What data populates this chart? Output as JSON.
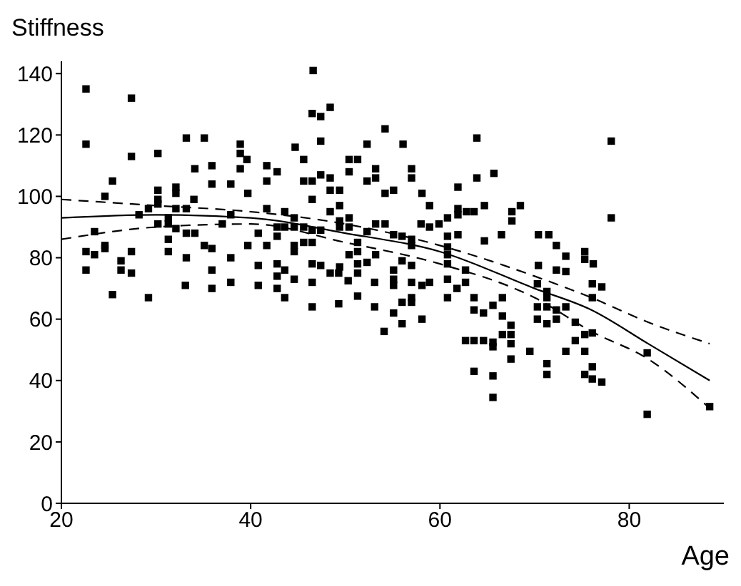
{
  "chart_data": {
    "type": "scatter",
    "xlabel": "Age",
    "ylabel": "Stiffness",
    "xlim": [
      20,
      90
    ],
    "ylim": [
      0,
      144
    ],
    "xticks": [
      20,
      40,
      60,
      80
    ],
    "yticks": [
      0,
      20,
      40,
      60,
      80,
      100,
      120,
      140
    ],
    "grid": false,
    "legend": false,
    "marker": "square",
    "series": [
      {
        "color": "#000000",
        "x": [
          22.6,
          27.4,
          22.6,
          27.4,
          30.2,
          33.2,
          35.1,
          38.9,
          38.9,
          38.9,
          39.6,
          25.4,
          34.1,
          35.9,
          35.9,
          37.9,
          39.7,
          24.6,
          30.2,
          30.2,
          30.2,
          32.1,
          32.1,
          34,
          29.2,
          28.2,
          32.1,
          33.2,
          37.9,
          37,
          30.2,
          31.3,
          31.3,
          32.1,
          31.3,
          31.3,
          33.2,
          34.1,
          35.1,
          35.9,
          37.9,
          33.2,
          39.7,
          23.5,
          22.6,
          23.5,
          24.6,
          24.6,
          27.4,
          26.3,
          22.6,
          26.3,
          27.4,
          25.4,
          29.2,
          33.1,
          35.9,
          35.9,
          37.9,
          46.6,
          46.5,
          47.4,
          48.4,
          47.4,
          54.2,
          44.7,
          52.3,
          56.1,
          63.9,
          41.7,
          42.8,
          45.6,
          50.4,
          51.3,
          50.4,
          53.2,
          53.2,
          52.3,
          57,
          57,
          63.9,
          41.7,
          45.6,
          46.5,
          47.4,
          48.4,
          48.4,
          49.4,
          54.2,
          55.1,
          58.1,
          61.9,
          46.5,
          49.4,
          58.9,
          48.4,
          41.7,
          43.6,
          61.9,
          61.9,
          62.8,
          63.6,
          60.8,
          40.8,
          42.8,
          42.8,
          43.6,
          44.6,
          45.6,
          46.5,
          47.4,
          44.6,
          49.4,
          49.4,
          50.4,
          50.4,
          53.2,
          54.2,
          52.3,
          55.1,
          56,
          57,
          58,
          58.9,
          59.9,
          60.8,
          61.9,
          41.7,
          44.6,
          44.6,
          45.6,
          46.5,
          51.3,
          51.3,
          50.4,
          53.2,
          57,
          60.8,
          60.8,
          40.8,
          42.8,
          43.6,
          46.5,
          47.4,
          49.4,
          51.3,
          52.3,
          55.1,
          56,
          57,
          60.8,
          42.8,
          40.8,
          42.8,
          44.6,
          43.6,
          46.5,
          46.5,
          48.4,
          49.3,
          49.3,
          50.3,
          51.3,
          51.3,
          53.1,
          53.1,
          54.1,
          55.1,
          55.1,
          55.1,
          56,
          56,
          57,
          57,
          57,
          58.1,
          58.1,
          58.9,
          60.8,
          60.8,
          61.8,
          62.7,
          62.7,
          62.7,
          63.6,
          63.6,
          63.6,
          63.6,
          78.1,
          65.7,
          64.7,
          68.5,
          67.6,
          67.6,
          78.1,
          64.7,
          66.5,
          70.4,
          71.5,
          72.3,
          73.3,
          75.3,
          75.3,
          76.2,
          70.4,
          72.3,
          73.3,
          70.3,
          71.3,
          71.3,
          76.1,
          77.1,
          76.1,
          64.6,
          65.6,
          66.6,
          66.6,
          67.5,
          67.5,
          67.5,
          67.5,
          66.6,
          65.6,
          65.6,
          64.6,
          70.3,
          71.3,
          72.3,
          70.3,
          71.3,
          72.3,
          73.3,
          74.3,
          74.3,
          73.3,
          75.3,
          76.1,
          75.3,
          69.5,
          71.3,
          71.3,
          75.3,
          76.1,
          76.1,
          77.1,
          65.6,
          65.6,
          81.9,
          81.9,
          88.5
        ],
        "values": [
          135,
          132,
          117,
          113,
          114,
          119,
          119,
          117,
          114,
          109,
          112,
          105,
          109,
          110,
          104,
          104,
          101,
          100,
          102,
          99,
          97.5,
          103,
          101,
          99,
          96,
          94,
          96,
          96,
          94,
          91,
          91,
          93,
          91,
          89.5,
          86,
          82,
          88,
          88,
          84,
          83,
          80,
          80,
          84,
          88.5,
          82,
          81,
          84,
          83,
          82,
          79,
          76,
          76,
          75,
          68,
          67,
          71,
          76,
          70,
          72,
          141,
          127,
          126,
          129,
          118,
          122,
          116,
          117,
          117,
          119,
          110,
          108,
          112,
          112,
          112,
          108,
          109,
          106,
          105,
          109,
          106,
          106,
          105,
          105,
          105,
          107,
          106,
          102,
          102,
          101,
          102,
          101,
          103,
          99,
          97,
          97,
          95,
          96,
          95,
          96,
          94,
          95,
          95,
          93,
          88,
          90,
          87,
          90,
          90,
          90,
          89,
          89,
          93,
          92,
          90,
          93,
          90,
          91,
          91,
          88.5,
          87.5,
          87,
          86,
          91,
          90,
          91,
          87,
          87.5,
          84,
          84,
          82,
          85,
          85,
          85,
          82,
          81,
          81,
          84,
          83.5,
          81,
          77.5,
          78,
          76,
          78,
          77.5,
          77,
          78,
          78.5,
          76,
          79,
          77.5,
          78,
          74,
          71,
          70,
          73,
          67,
          72,
          64,
          75,
          75,
          65,
          72.5,
          75,
          67.5,
          72,
          64,
          56,
          73,
          71,
          62,
          65.5,
          58.5,
          72,
          67,
          65.5,
          71,
          60,
          72,
          73,
          67,
          70,
          76,
          72,
          53,
          67,
          63,
          53,
          43,
          118,
          107.5,
          97,
          97,
          95,
          92,
          93,
          85.5,
          87.5,
          87.5,
          87.5,
          84,
          80.5,
          82,
          79.5,
          78,
          77.5,
          76,
          75.5,
          71.5,
          69,
          67,
          71.5,
          70.5,
          67,
          62,
          64.5,
          67,
          61,
          58,
          55,
          52,
          47,
          55,
          52.5,
          51,
          53,
          64,
          64,
          63,
          60,
          58.5,
          60,
          64,
          59,
          53,
          49.5,
          55,
          55.5,
          49.5,
          49.5,
          45.5,
          42,
          42,
          44.5,
          40.5,
          39.5,
          41.5,
          34.5,
          49,
          29,
          31.5
        ]
      },
      {
        "type": "line",
        "color": "#000000",
        "marker": "none",
        "line_style": "solid",
        "x": [
          20,
          30,
          40,
          50,
          60,
          70,
          76,
          82,
          88.5
        ],
        "values": [
          93,
          94,
          93,
          88,
          82,
          70,
          63,
          52,
          40
        ]
      },
      {
        "type": "line",
        "color": "#000000",
        "marker": "none",
        "line_style": "dashed",
        "x": [
          20,
          30,
          40,
          50,
          60,
          70,
          76,
          82,
          88.5
        ],
        "values": [
          99,
          97,
          95,
          91,
          84,
          74,
          67,
          59,
          52
        ]
      },
      {
        "type": "line",
        "color": "#000000",
        "marker": "none",
        "line_style": "dashed",
        "x": [
          20,
          30,
          40,
          50,
          60,
          70,
          76,
          82,
          88.5
        ],
        "values": [
          86,
          90,
          91,
          85,
          78,
          67,
          56,
          47,
          31
        ]
      }
    ]
  }
}
